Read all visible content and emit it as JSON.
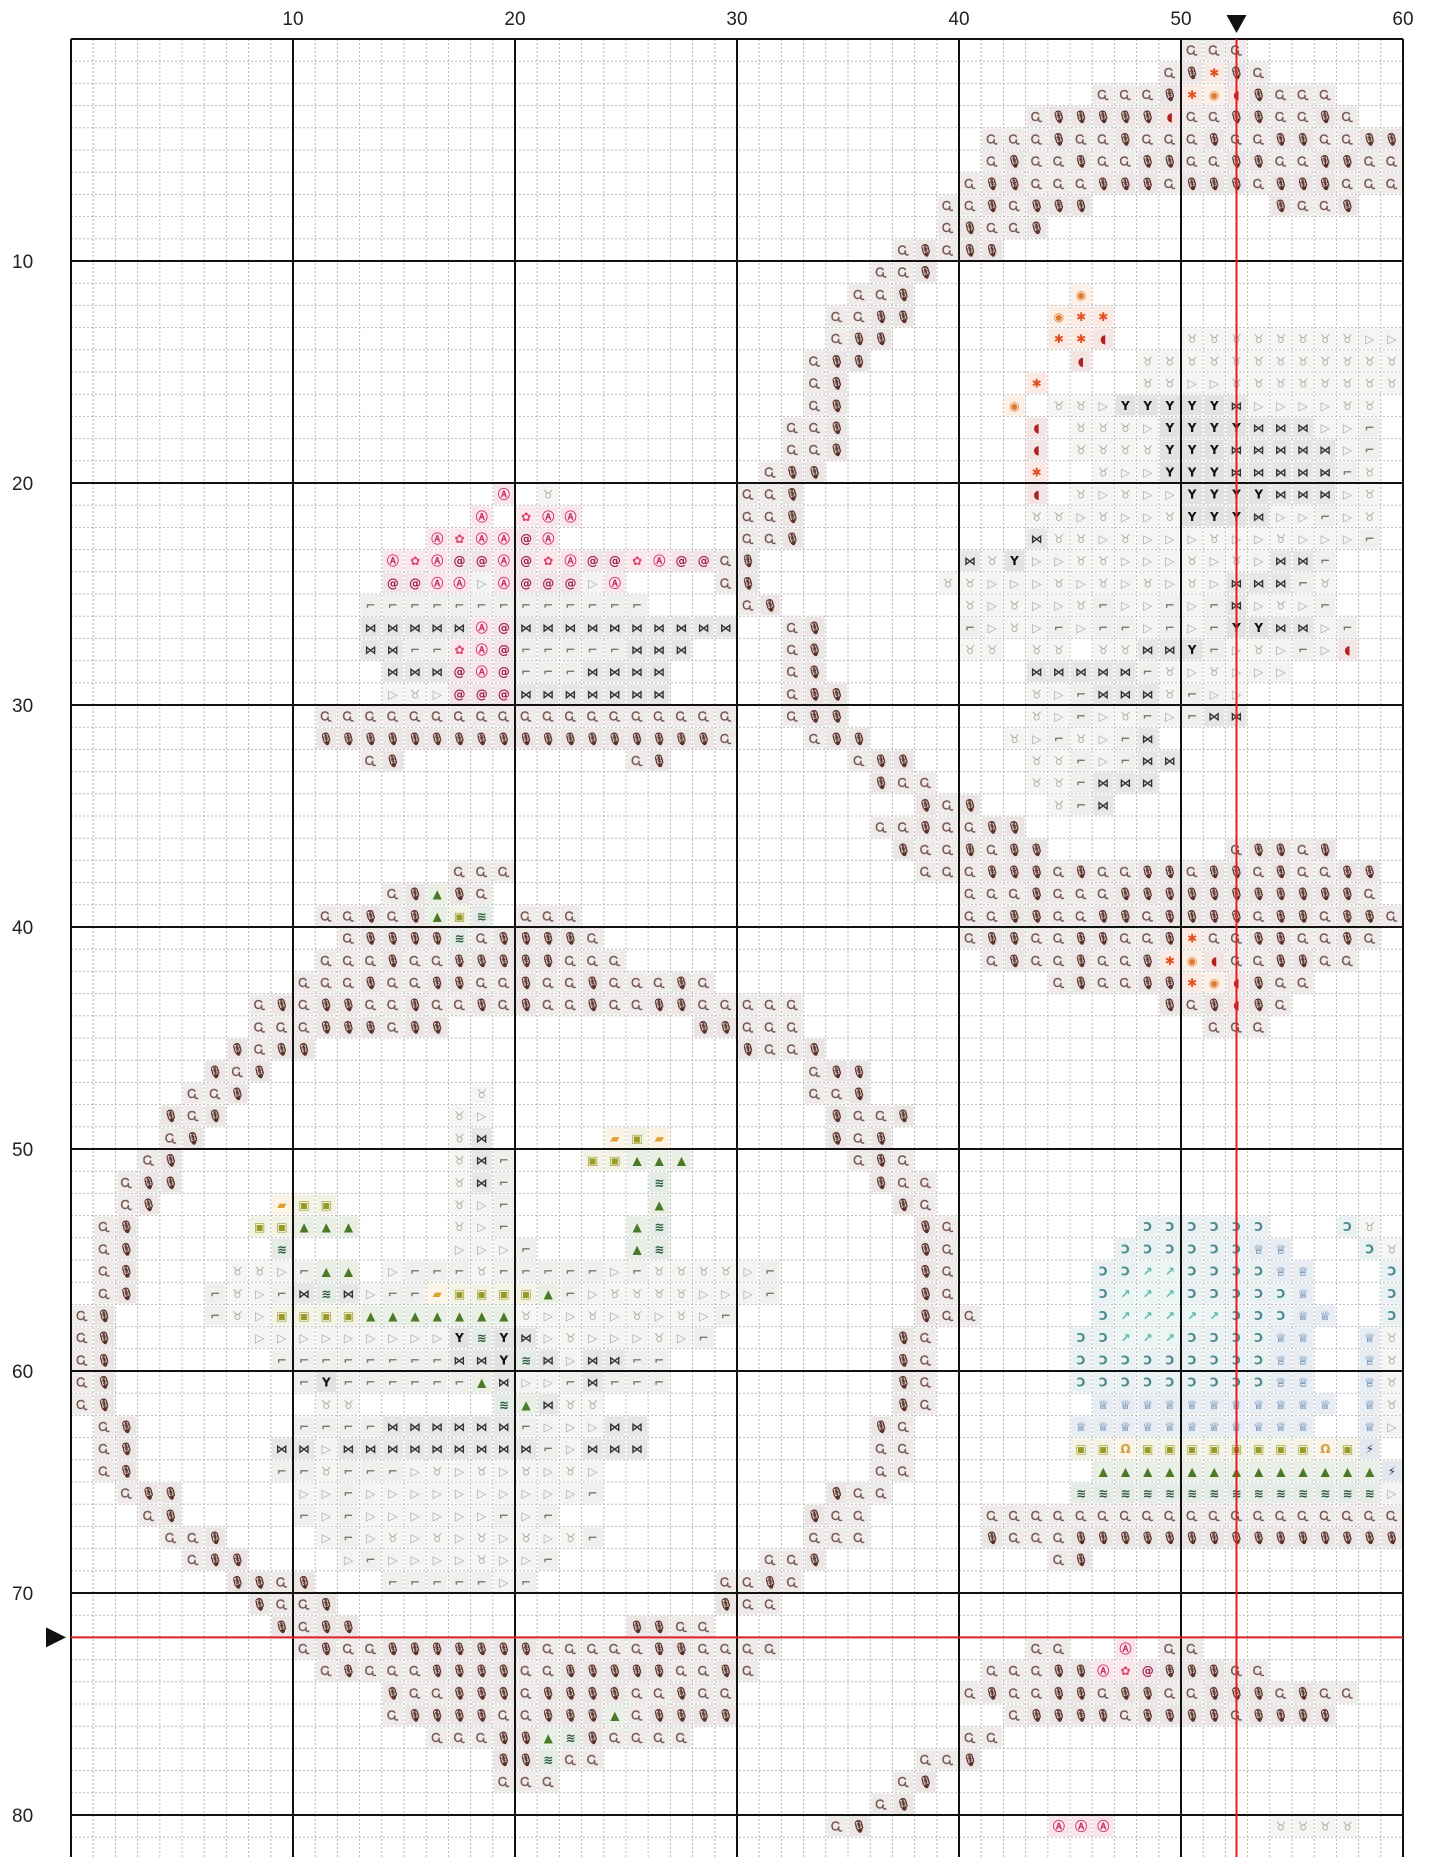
{
  "chart_data": {
    "type": "cross-stitch-pattern",
    "columns": 60,
    "rows": 82,
    "column_labels": [
      {
        "value": 10,
        "text": "10"
      },
      {
        "value": 20,
        "text": "20"
      },
      {
        "value": 30,
        "text": "30"
      },
      {
        "value": 40,
        "text": "40"
      },
      {
        "value": 50,
        "text": "50"
      },
      {
        "value": 60,
        "text": "60"
      }
    ],
    "row_labels": [
      {
        "value": 10,
        "text": "10"
      },
      {
        "value": 20,
        "text": "20"
      },
      {
        "value": 30,
        "text": "30"
      },
      {
        "value": 40,
        "text": "40"
      },
      {
        "value": 50,
        "text": "50"
      },
      {
        "value": 60,
        "text": "60"
      },
      {
        "value": 70,
        "text": "70"
      },
      {
        "value": 80,
        "text": "80"
      }
    ],
    "center_column": 52.5,
    "center_row": 72,
    "colors": {
      "grid_line": "#b8b8b8",
      "major_line": "#111111",
      "center_line": "#e02020",
      "marker": "#111111"
    },
    "symbol_palette": {
      "D": {
        "glyph": "Ꮹ",
        "color": "#7a5a55"
      },
      "M": {
        "glyph": "🎙",
        "color": "#5a3028"
      },
      "m": {
        "glyph": "✦",
        "color": "#6b2d2a"
      },
      "g": {
        "glyph": "▷",
        "color": "#a8a8a8"
      },
      "t": {
        "glyph": "♉",
        "color": "#b0aca0"
      },
      "s": {
        "glyph": "⌐",
        "color": "#7a7868"
      },
      "b": {
        "glyph": "⋈",
        "color": "#333333"
      },
      "Y": {
        "glyph": "Y",
        "color": "#111111"
      },
      "p": {
        "glyph": "Ⓐ",
        "color": "#d0306a"
      },
      "f": {
        "glyph": "✿",
        "color": "#e0406a"
      },
      "c": {
        "glyph": "@",
        "color": "#a02050"
      },
      "o": {
        "glyph": "◉",
        "color": "#e07830"
      },
      "x": {
        "glyph": "✱",
        "color": "#e05020"
      },
      "r": {
        "glyph": "◖",
        "color": "#b02020"
      },
      "G": {
        "glyph": "▲",
        "color": "#4a7a28"
      },
      "w": {
        "glyph": "≋",
        "color": "#2a5a3a"
      },
      "y": {
        "glyph": "▣",
        "color": "#9a9a28"
      },
      "Q": {
        "glyph": "▰",
        "color": "#e0a030"
      },
      "u": {
        "glyph": "Ͻ",
        "color": "#4a8a90"
      },
      "a": {
        "glyph": "↗",
        "color": "#5ab8a8"
      },
      "k": {
        "glyph": "♕",
        "color": "#3a6a9a"
      },
      "z": {
        "glyph": "⚡",
        "color": "#2a3a7a"
      },
      "h": {
        "glyph": "Ω",
        "color": "#d0a040"
      }
    },
    "grid_rows": [
      "                                                  DDD       ",
      "                                                 DMxMD      ",
      "                                              DDDMxorMDDD   ",
      "                                           DMMMMMrDDMMDDMD  ",
      "                                         DDDMDDMDDDMDDMMDDMM",
      "                                         DMDDMDDMMDDMMDDMMDD",
      "                                        DMMDDDMMMDMMMDMMMDDD",
      "                                       DDMDMMM        MDDM  ",
      "                                       DMDDM                ",
      "                                     DMDMM                  ",
      "                                    DDM                     ",
      "                                   DDM       o              ",
      "                                  DDMM      oxx             ",
      "                                  DMM       xxr   ttttttttgg",
      "                                 DMM         r  tttttttttttt",
      "                                 DM        x    ttggtttttttt",
      "                                 DM       o ttgYYYYYbggggtt",
      "                                DDM        r tttgYYYYbbbggs",
      "                                DDM        r ttttYYYbbbbbgs",
      "                               DMM         x  tggYYYbbbbbst",
      "                   p t        DDM          r tgtggYYYYbbbgt",
      "                  p fpp       DDM          ttgtggtYYYbggsgt",
      "                pfppcp        DDM          bttgtgggtggtgggs",
      "              pfpccpcfpccfpccDM         btYggttgggtgtgbbs",
      "              ccppgpcccgp    DM        ttgggtgtgtgtgbbbst",
      "             sssssssssssss    DM        tgtggtsggsgsbgtgs",
      "             bbbbbpcbbbbbbbbbb  DM      sgtgsgssgsgsYYbbgs",
      "             bbssfpcsssssbbb    DM      tt tt ttbbYsgtgsgr",
      "              bbbcpcsssbbbb     DM         bbbbbstgtggg  ",
      "              gtgcccbbbbbbb     DMM        tgsbbbtsgg    ",
      "           DDDDDDDDDDDDDDDDDDD  DMM        tgsgtsgsbb     ",
      "           MMMMMMMMMMMMMMMMMMD   DMM      tgstgsb        ",
      "             DM          DM        DMM     ttsgsbb        ",
      "                                    MDD    ttsbbb         ",
      "                                      MDM   tsb          ",
      "                                    DDMDDMM             ",
      "                                     MDDMDMM        DMMDM",
      "                 DDD                  DDDMMMDMDDMMDMMDMDDMM",
      "              DMGMD                     DDDMDDDMMMMMMMMMMMD",
      "           DDMDMGyw DDD                 DDMMDDMMDMMMMDMMDMMD",
      "            DMMMMwDMMMMD                DMMDDMMDDMxDDMMDDMD",
      "           DDDMDDMMMMMDDD                DMDDMDDMxorDDMMDD",
      "          DDDMDDMMDDMDDMDDDMD               DMDDMMxorMDD  ",
      "        DMDMMDDMDDMDMDDMDDMMDDDDD                MDMrMD   ",
      "        DDDMMMDMM           MMDDD                  DDD    ",
      "       MDMM                   MDDM                        ",
      "      MDM                        DMM                       ",
      "     DDM          t              DDM                      ",
      "    MDM          tg               MDDM                    ",
      "    DM           tb     QyQ       MDM                     ",
      "   DM            tbs   yyGGG       DMD                     ",
      "  DMM            tbs      w         MDD                    ",
      "  DM     Qyy     tgs      G          MD                    ",
      " DM     yyGGG    tgs     Gw           MD        uuuuuu   ut",
      " DM      w       gggs    Gw           MD       uuuuuukk   ut",
      " DM    ttgsGG gssstsssssgsttttgs      MD      uuaauuuukk   ut",
      " DM   stgsbwbgssQyyyyGsgttttgggs      MD      uaaauuuuuk   ut",
      "DM    stgyyyyGGGGGGGtggtgtgtgs        MDD     uaaaaauuukk  ut",
      "DM      gggggggggYwYbgtgggtgs        MD      uuaaauuuukk  kt",
      "DM       ssssssssbbYwbgbbss          MD      uuuuuuuuukk  kt",
      "DM        sYssssssGbggsbsss          MD      uuuuuuuuukk  kt",
      "DM         tt      wGbtt             MD       kkkkkkkkkkk kt",
      " DM       ssssbbbbbbsgggbb          MD       kkkkkkkkkkk  kg",
      " DM      bbgbbbbbbbbbsgbbb          DD       yyhyyyyyyyyhyz",
      " DM      sstsssgtgtgtgtg            DD        GGGGGGGGGGGGGz",
      "  DMM     ggsggggggggggs          MDD        wwwwwwwwwwwwwwg",
      "   DM     sgsggggggsgs           MDD     DDDDDDDDDDDDDDDDDDDD",
      "    DDM    gsgtgtgtgtgts         DDD     MDDDMMMMMMMMMMMMMMMM",
      "     DMM    gsggggtggs         DDM          DM             ",
      "       MMDM   sssssgs        DDMD                          ",
      "        MDDM                 MDD                           ",
      "         MDMM            MMDD                              ",
      "          DMDDMMMMMMMDDDDDMMDDDD           DD  p DD       ",
      "           DMDDDMMMMDDMMMMMDDMD          DDDMMpfcMMMDD    ",
      "              MDDMMMDMMMMDDMDD          DMDDMMDMMDDMMMDMDD",
      "              DMMMMDDMMMGDMMMM            DMMMMDMMMMDMMMM ",
      "                DDDMMGwMDDDD            DD                  ",
      "                   MMwDD              DDM                 ",
      "                   DDD               DM                    ",
      "                                    DM                     ",
      "                                  DM        ppp       tttt ",
      "                                                           ",
      "                                                           "
    ]
  }
}
